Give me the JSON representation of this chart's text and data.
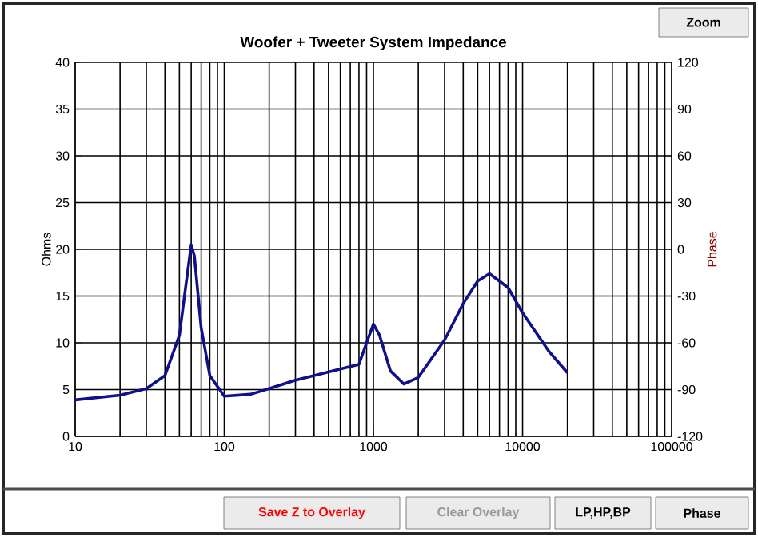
{
  "chart_data": {
    "type": "line",
    "title": "Woofer + Tweeter     System Impedance",
    "ylabel": "Ohms",
    "y2label": "Phase",
    "log": "x",
    "xlim": [
      10,
      100000
    ],
    "xticks": [
      10,
      100,
      1000,
      10000,
      100000
    ],
    "ylim": [
      0,
      40
    ],
    "yticks": [
      0,
      5,
      10,
      15,
      20,
      25,
      30,
      35,
      40
    ],
    "y2lim": [
      -120,
      120
    ],
    "y2ticks": [
      -120,
      -90,
      -60,
      -30,
      0,
      30,
      60,
      90,
      120
    ],
    "grid": true,
    "marker": "none",
    "line_style": "solid",
    "x": [
      10,
      20,
      30,
      40,
      50,
      55,
      60,
      63,
      70,
      80,
      100,
      150,
      200,
      300,
      400,
      600,
      800,
      900,
      1000,
      1100,
      1300,
      1600,
      2000,
      3000,
      4000,
      5000,
      6000,
      8000,
      10000,
      15000,
      20000
    ],
    "series": [
      {
        "color": "#10108a",
        "values": [
          3.9,
          4.4,
          5.1,
          6.5,
          10.8,
          15.9,
          20.5,
          19.3,
          11.6,
          6.5,
          4.3,
          4.5,
          5.1,
          6.0,
          6.5,
          7.2,
          7.7,
          10,
          12,
          10.8,
          7,
          5.6,
          6.3,
          10.3,
          14.2,
          16.6,
          17.4,
          15.9,
          13.2,
          9.1,
          6.8
        ]
      }
    ],
    "annotations": [
      "Zoom",
      "Save Z to Overlay",
      "Clear Overlay",
      "LP,HP,BP",
      "Phase"
    ]
  }
}
